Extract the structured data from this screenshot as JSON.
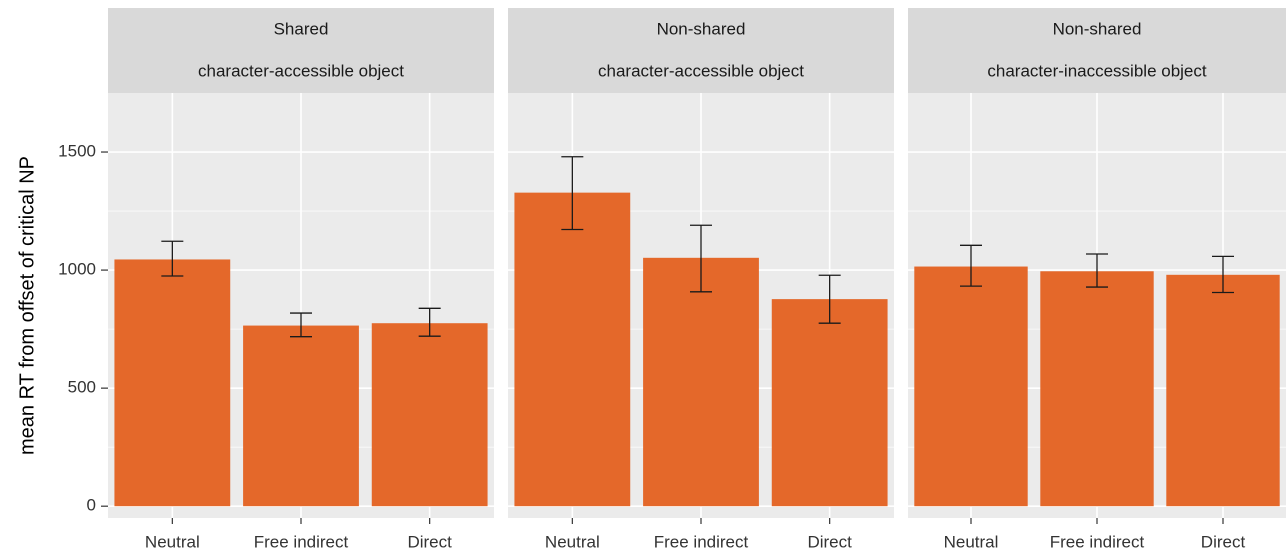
{
  "chart_data": {
    "type": "bar",
    "ylabel": "mean RT from offset of critical NP",
    "ylim": [
      -50,
      1750
    ],
    "yticks": [
      0,
      500,
      1000,
      1500
    ],
    "grid": true,
    "legend": "none",
    "bar_color": "#E4682A",
    "errorbar_color": "#1a1a1a",
    "panel_bg": "#EBEBEB",
    "strip_bg": "#D9D9D9",
    "categories": [
      "Neutral",
      "Free indirect",
      "Direct"
    ],
    "panels": [
      {
        "label_top": "Shared",
        "label_bottom": "character-accessible object",
        "values": [
          1045,
          765,
          775
        ],
        "err_low": [
          975,
          718,
          720
        ],
        "err_high": [
          1122,
          818,
          838
        ]
      },
      {
        "label_top": "Non-shared",
        "label_bottom": "character-accessible object",
        "values": [
          1328,
          1052,
          877
        ],
        "err_low": [
          1172,
          908,
          775
        ],
        "err_high": [
          1480,
          1190,
          978
        ]
      },
      {
        "label_top": "Non-shared",
        "label_bottom": "character-inaccessible object",
        "values": [
          1015,
          995,
          980
        ],
        "err_low": [
          932,
          928,
          905
        ],
        "err_high": [
          1105,
          1068,
          1058
        ]
      }
    ]
  }
}
